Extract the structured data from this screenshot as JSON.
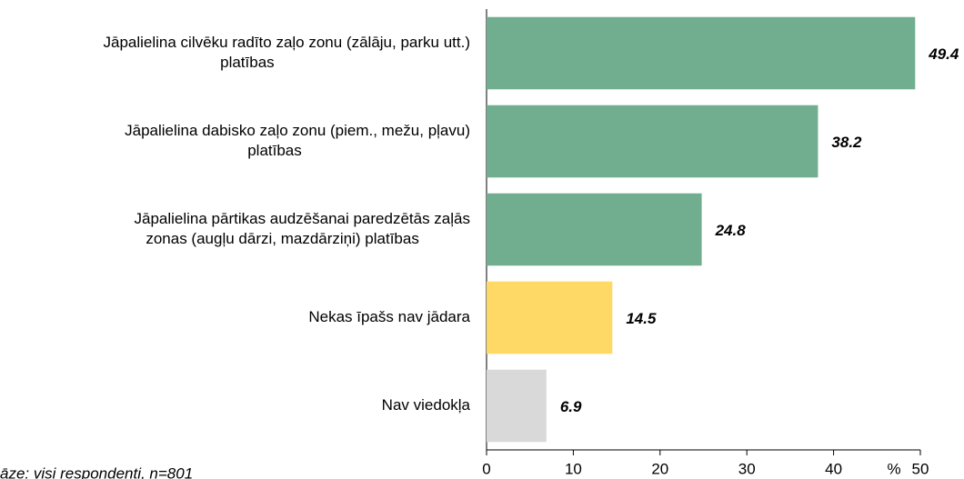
{
  "chart_data": {
    "type": "barh",
    "categories": [
      [
        "Jāpalielina cilvēku radīto zaļo zonu (zālāju, parku utt.)",
        "platības"
      ],
      [
        "Jāpalielina dabisko zaļo zonu (piem., mežu, pļavu)",
        "platības"
      ],
      [
        "Jāpalielina pārtikas audzēšanai paredzētās zaļās",
        "zonas (augļu dārzi, mazdārziņi) platības"
      ],
      [
        "Nekas īpašs nav jādara"
      ],
      [
        "Nav viedokļa"
      ]
    ],
    "values": [
      49.4,
      38.2,
      24.8,
      14.5,
      6.9
    ],
    "colors": [
      "#70ae8f",
      "#70ae8f",
      "#70ae8f",
      "#ffd966",
      "#d9d9d9"
    ],
    "xlim": [
      0,
      50
    ],
    "xticks": [
      0,
      10,
      20,
      30,
      40,
      50
    ],
    "xlabel": "%",
    "footnote": "āze: visi respondenti, n=801"
  }
}
